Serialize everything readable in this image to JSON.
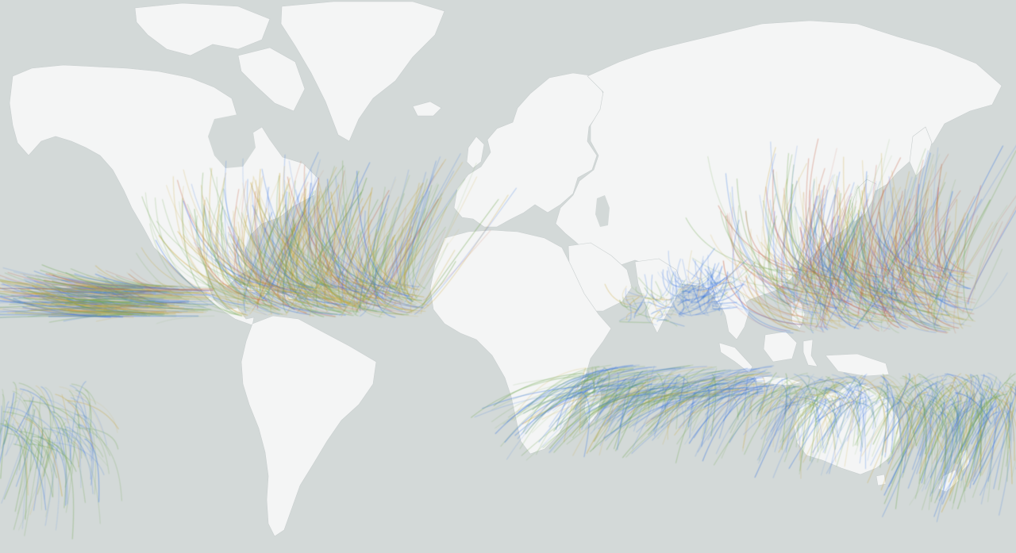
{
  "map": {
    "projection": "mercator",
    "colors": {
      "ocean": "#d3d9d8",
      "land": "#f4f5f5",
      "land_border": "#c9cfcf",
      "track_weak": "#2f6ee0",
      "track_mid": "#6aa24a",
      "track_strong": "#c7a53a",
      "track_extreme": "#c0573a"
    },
    "track_basins": [
      "north-atlantic",
      "eastern-north-pacific",
      "western-north-pacific",
      "bay-of-bengal",
      "arabian-sea",
      "south-indian",
      "south-pacific",
      "australian-region"
    ]
  }
}
